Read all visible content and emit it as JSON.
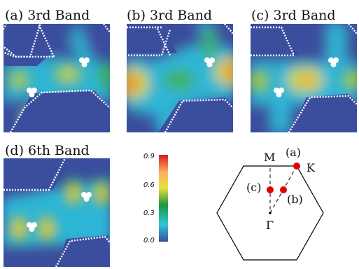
{
  "panels": [
    {
      "title": "(a) 3rd Band"
    },
    {
      "title": "(b) 3rd Band"
    },
    {
      "title": "(c) 3rd Band"
    },
    {
      "title": "(d) 6th Band"
    }
  ],
  "colorbar": {
    "ticks": [
      "0.9",
      "0.6",
      "0.3",
      "0.0"
    ],
    "colors": [
      "#d7191c",
      "#fdae61",
      "#e8e03a",
      "#1a9641",
      "#2fc7d8",
      "#3a4fa0"
    ]
  },
  "brillouin_zone": {
    "labels": {
      "M": "M",
      "K": "K",
      "Gamma": "Γ",
      "a": "(a)",
      "b": "(b)",
      "c": "(c)"
    },
    "point_color": "#e00000"
  }
}
